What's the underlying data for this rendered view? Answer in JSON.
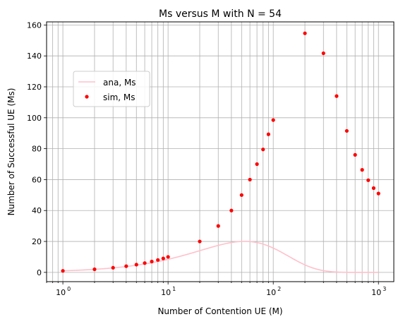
{
  "chart_data": {
    "type": "line",
    "title": "Ms versus M with N = 54",
    "xlabel": "Number of Contention UE (M)",
    "ylabel": "Number of Successful UE (Ms)",
    "xscale": "log",
    "xlim": [
      0.7,
      1400
    ],
    "ylim": [
      -6,
      162
    ],
    "xticks": [
      {
        "value": 1,
        "label": "10",
        "exp": "0"
      },
      {
        "value": 10,
        "label": "10",
        "exp": "1"
      },
      {
        "value": 100,
        "label": "10",
        "exp": "2"
      },
      {
        "value": 1000,
        "label": "10",
        "exp": "3"
      }
    ],
    "yticks": [
      0,
      20,
      40,
      60,
      80,
      100,
      120,
      140,
      160
    ],
    "grid": true,
    "legend_position": "upper-left",
    "series": [
      {
        "name": "ana, Ms",
        "kind": "line",
        "color": "#ffc0cb",
        "formula": "M*(1-1/N)^(M-1)",
        "N": 54,
        "x_range": [
          1,
          1000
        ]
      },
      {
        "name": "sim, Ms",
        "kind": "scatter",
        "color": "#ff0000",
        "x": [
          1,
          2,
          3,
          4,
          5,
          6,
          7,
          8,
          9,
          10,
          20,
          30,
          40,
          50,
          60,
          70,
          80,
          90,
          100,
          200,
          300,
          400,
          500,
          600,
          700,
          800,
          900,
          1000
        ],
        "y": [
          1,
          2,
          3,
          4,
          5,
          6,
          7,
          8,
          9,
          10,
          20,
          30,
          40,
          50,
          60,
          70,
          79.5,
          89.3,
          98.5,
          154.6,
          141.7,
          114,
          91.5,
          76,
          66.3,
          59.6,
          54.5,
          51
        ]
      }
    ]
  }
}
